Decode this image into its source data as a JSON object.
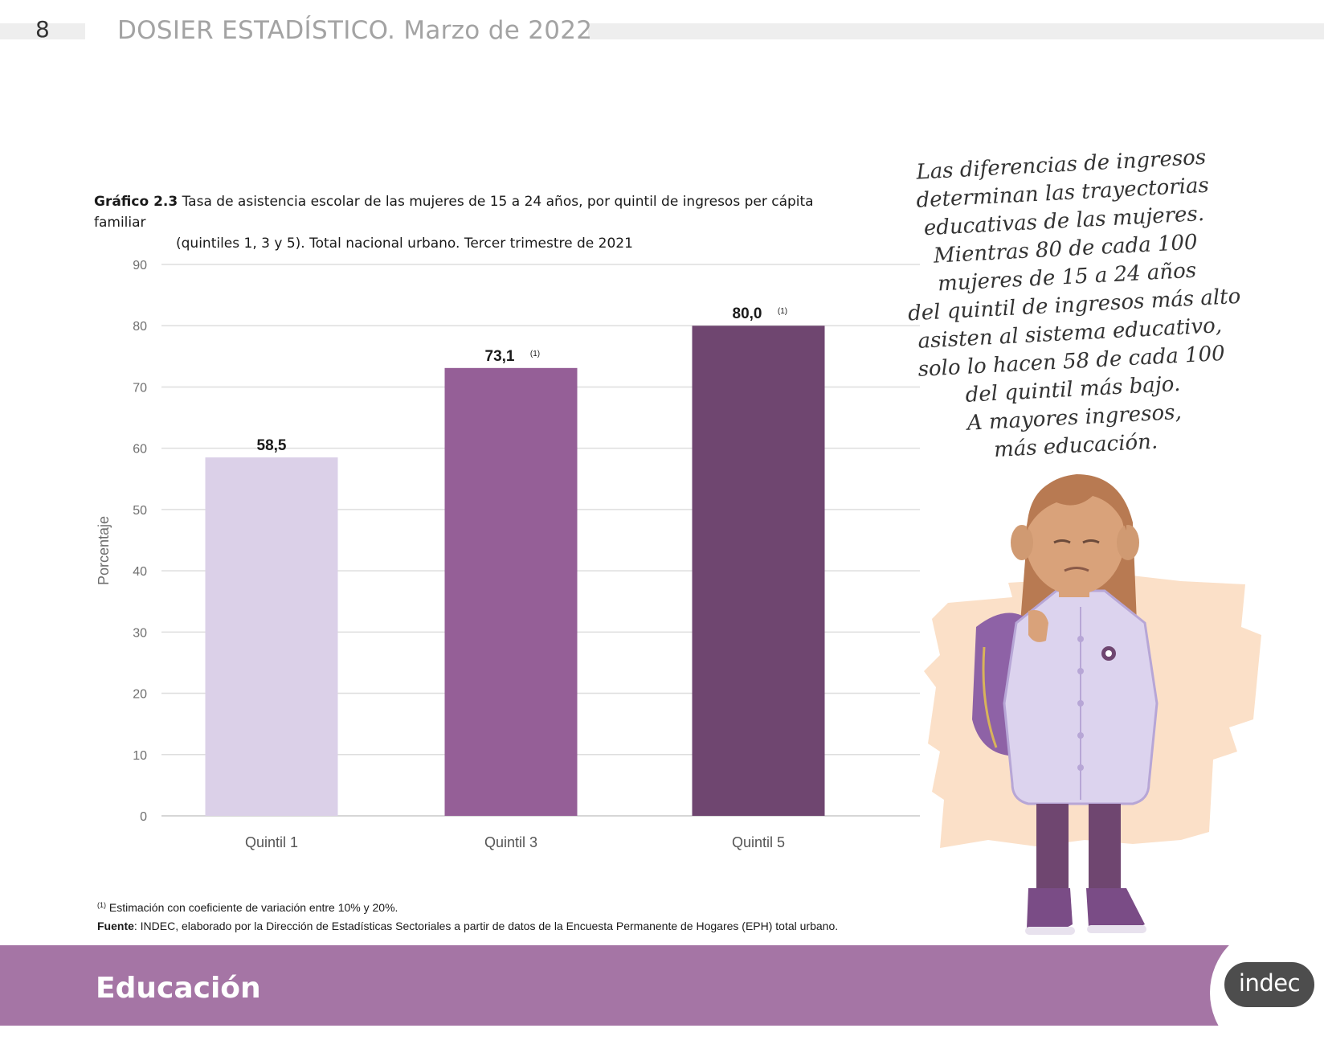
{
  "header": {
    "page_number": "8",
    "document_title": "DOSIER ESTADÍSTICO. Marzo de 2022"
  },
  "chart_heading": {
    "label": "Gráfico 2.3",
    "line1": "Tasa de asistencia escolar de las mujeres de 15 a 24 años, por quintil de ingresos per cápita familiar",
    "line2": "(quintiles 1, 3 y 5). Total nacional urbano. Tercer trimestre de 2021"
  },
  "chart_data": {
    "type": "bar",
    "title": "Tasa de asistencia escolar de las mujeres de 15 a 24 años, por quintil de ingresos per cápita familiar (quintiles 1, 3 y 5). Total nacional urbano. Tercer trimestre de 2021",
    "categories": [
      "Quintil 1",
      "Quintil 3",
      "Quintil 5"
    ],
    "values": [
      58.5,
      73.1,
      80.0
    ],
    "value_labels": [
      "58,5",
      "73,1",
      "80,0"
    ],
    "value_notes": [
      "",
      "(1)",
      "(1)"
    ],
    "bar_colors": [
      "#dbd0e8",
      "#955f97",
      "#6f4670"
    ],
    "xlabel": "",
    "ylabel": "Porcentaje",
    "ylim": [
      0,
      90
    ],
    "yticks": [
      0,
      10,
      20,
      30,
      40,
      50,
      60,
      70,
      80,
      90
    ],
    "grid": true,
    "legend": "none"
  },
  "notes": {
    "footnote_mark": "(1)",
    "footnote_text": "Estimación con coeficiente de variación entre 10% y 20%.",
    "source_label": "Fuente",
    "source_text": ": INDEC, elaborado por la Dirección de Estadísticas Sectoriales a partir de datos de la Encuesta Permanente de Hogares (EPH) total urbano."
  },
  "quote": {
    "lines": [
      "Las diferencias de ingresos",
      "determinan las trayectorias",
      "educativas de las mujeres.",
      "Mientras 80 de cada 100",
      "mujeres de 15 a 24 años",
      "del quintil de ingresos más alto",
      "asisten al sistema educativo,",
      "solo lo hacen 58 de cada 100",
      "del quintil más bajo.",
      "A mayores ingresos,",
      "más educación."
    ]
  },
  "footer": {
    "section": "Educación",
    "logo_text": "indec"
  },
  "colors": {
    "footer_band": "#a575a5",
    "accent_purple": "#955f97",
    "dark_purple": "#6f4670",
    "light_purple": "#dbd0e8",
    "peach": "#fbe0c8"
  },
  "illustration": {
    "subject": "girl-student-illustration"
  }
}
